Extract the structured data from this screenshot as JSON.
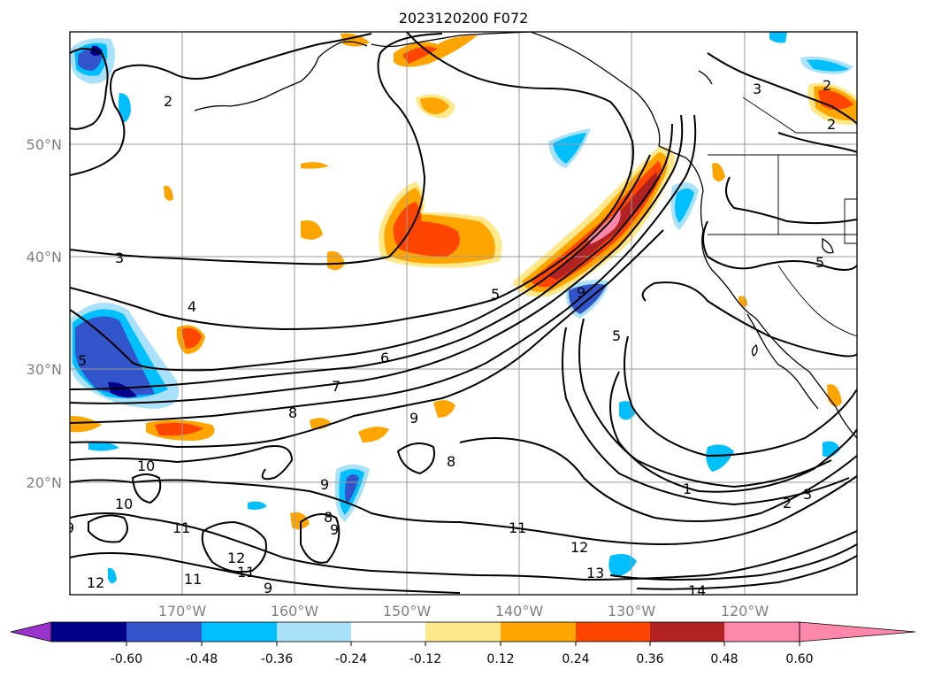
{
  "title": "2023120200 F072",
  "lat_labels": [
    "50°N",
    "40°N",
    "30°N",
    "20°N"
  ],
  "lon_labels": [
    "170°W",
    "160°W",
    "150°W",
    "140°W",
    "130°W",
    "120°W"
  ],
  "colorbar": {
    "ticks": [
      "-0.60",
      "-0.48",
      "-0.36",
      "-0.24",
      "-0.12",
      "0.12",
      "0.24",
      "0.36",
      "0.48",
      "0.60"
    ],
    "colors": [
      "#9933cc",
      "#00008b",
      "#3355cc",
      "#00bfff",
      "#aae1fa",
      "#ffffff",
      "#ffe88a",
      "#ffa500",
      "#ff4500",
      "#b22222",
      "#ff88aa"
    ]
  },
  "contour_labels": [
    "2",
    "3",
    "4",
    "5",
    "6",
    "7",
    "8",
    "9",
    "10",
    "11",
    "12",
    "13",
    "14",
    "1",
    "2",
    "3",
    "5",
    "5",
    "9",
    "8",
    "9",
    "10",
    "11",
    "9",
    "12",
    "11",
    "11",
    "12",
    "2",
    "5",
    "9",
    "8",
    "1",
    "2"
  ]
}
